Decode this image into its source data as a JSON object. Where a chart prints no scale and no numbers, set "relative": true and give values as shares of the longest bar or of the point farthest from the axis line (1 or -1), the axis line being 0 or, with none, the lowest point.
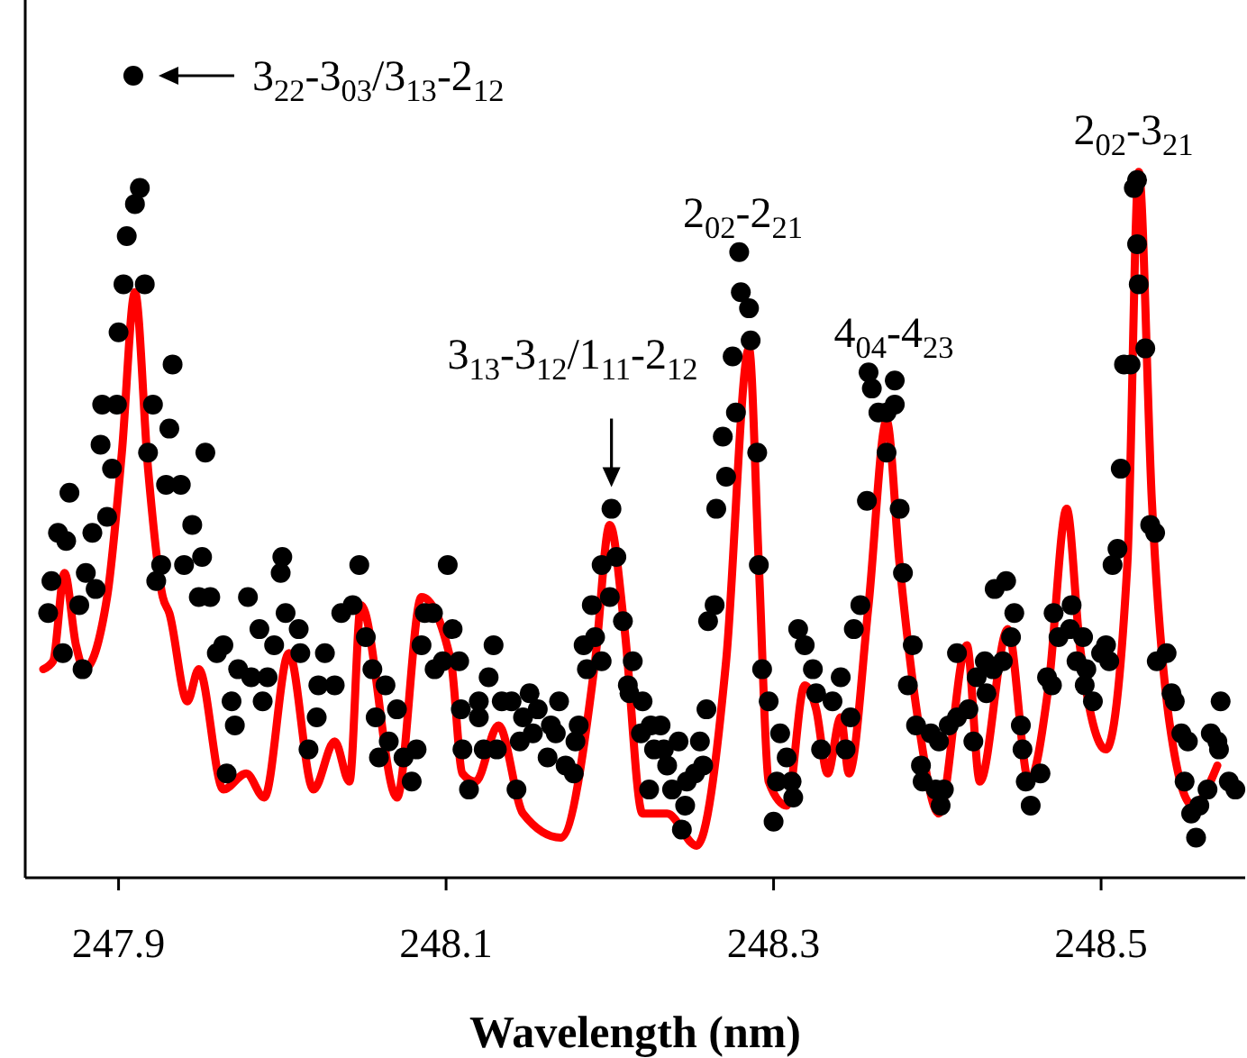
{
  "chart_data": {
    "type": "scatter",
    "xlabel": "Wavelength (nm)",
    "relative": true,
    "xlim": [
      247.843,
      248.588
    ],
    "xticks": [
      247.9,
      248.1,
      248.3,
      248.5
    ],
    "grid": false,
    "annotations": [
      {
        "text": "3$_{22}$-3$_{03}$/3$_{13}$-2$_{12}$",
        "x": 247.909,
        "y": 1.0
      },
      {
        "text": "3$_{13}$-3$_{12}$/1$_{11}$-2$_{12}$",
        "x": 248.201,
        "y": 0.46
      },
      {
        "text": "2$_{02}$-2$_{21}$",
        "x": 248.279,
        "y": 0.78
      },
      {
        "text": "4$_{04}$-4$_{23}$",
        "x": 248.358,
        "y": 0.63
      },
      {
        "text": "2$_{02}$-3$_{21}$",
        "x": 248.522,
        "y": 0.87
      }
    ],
    "series": [
      {
        "type": "line",
        "color": "#ff0000",
        "line_style": "solid",
        "x": [
          247.854,
          247.86,
          247.867,
          247.874,
          247.879,
          247.893,
          247.902,
          247.91,
          247.918,
          247.927,
          247.931,
          247.942,
          247.949,
          247.964,
          247.978,
          247.989,
          248.004,
          248.019,
          248.032,
          248.041,
          248.048,
          248.07,
          248.085,
          248.103,
          248.11,
          248.118,
          248.132,
          248.147,
          248.17,
          248.191,
          248.2,
          248.209,
          248.22,
          248.235,
          248.253,
          248.271,
          248.285,
          248.291,
          248.297,
          248.308,
          248.319,
          248.326,
          248.333,
          248.341,
          248.346,
          248.358,
          248.369,
          248.377,
          248.388,
          248.401,
          248.418,
          248.426,
          248.443,
          248.456,
          248.468,
          248.479,
          248.487,
          248.503,
          248.516,
          248.523,
          248.531,
          248.542,
          248.556,
          248.571
        ],
        "values": [
          0.26,
          0.27,
          0.38,
          0.29,
          0.26,
          0.35,
          0.53,
          0.73,
          0.51,
          0.35,
          0.33,
          0.22,
          0.26,
          0.11,
          0.13,
          0.1,
          0.28,
          0.11,
          0.17,
          0.12,
          0.34,
          0.1,
          0.35,
          0.27,
          0.13,
          0.12,
          0.19,
          0.08,
          0.05,
          0.27,
          0.44,
          0.31,
          0.08,
          0.08,
          0.04,
          0.27,
          0.66,
          0.39,
          0.12,
          0.09,
          0.24,
          0.21,
          0.13,
          0.2,
          0.13,
          0.34,
          0.57,
          0.39,
          0.2,
          0.08,
          0.29,
          0.12,
          0.31,
          0.12,
          0.24,
          0.46,
          0.29,
          0.16,
          0.39,
          0.88,
          0.47,
          0.19,
          0.09,
          0.14
        ]
      },
      {
        "color": "#000000",
        "marker": "circle",
        "x": [
          247.909,
          247.913,
          247.91,
          247.905,
          247.903,
          247.916,
          247.9,
          247.933,
          247.89,
          247.899,
          247.921,
          247.931,
          247.889,
          247.918,
          247.896,
          247.929,
          247.938,
          247.87,
          247.953,
          247.893,
          247.945,
          247.863,
          247.884,
          247.868,
          247.951,
          247.926,
          247.94,
          247.859,
          247.88,
          247.886,
          247.923,
          247.949,
          247.956,
          247.876,
          247.857,
          247.866,
          247.878,
          248.0,
          247.999,
          247.979,
          248.002,
          247.986,
          247.964,
          247.96,
          247.995,
          248.01,
          248.011,
          247.973,
          247.981,
          247.991,
          248.026,
          248.036,
          248.043,
          248.047,
          247.969,
          247.988,
          247.971,
          248.022,
          248.032,
          248.021,
          248.016,
          248.051,
          248.055,
          248.063,
          248.07,
          248.057,
          248.065,
          248.059,
          248.074,
          248.082,
          248.079,
          247.966,
          248.085,
          248.087,
          248.093,
          248.101,
          248.092,
          248.104,
          248.098,
          248.108,
          248.109,
          248.12,
          248.12,
          248.129,
          248.126,
          248.134,
          248.14,
          248.151,
          248.147,
          248.156,
          248.169,
          248.164,
          248.153,
          248.11,
          248.123,
          248.131,
          248.145,
          248.167,
          248.162,
          248.173,
          248.178,
          248.181,
          248.179,
          248.114,
          248.143,
          248.184,
          248.191,
          248.186,
          248.195,
          248.189,
          248.2,
          248.195,
          248.204,
          248.201,
          248.208,
          248.214,
          248.211,
          248.212,
          248.22,
          248.219,
          248.225,
          248.231,
          248.227,
          248.233,
          248.242,
          248.235,
          248.238,
          248.224,
          248.247,
          248.252,
          248.255,
          248.259,
          248.257,
          248.246,
          248.244,
          248.26,
          248.264,
          248.265,
          248.271,
          248.269,
          248.277,
          248.275,
          248.286,
          248.28,
          248.285,
          248.279,
          248.29,
          248.291,
          248.293,
          248.297,
          248.304,
          248.302,
          248.311,
          248.308,
          248.3,
          248.312,
          248.319,
          248.315,
          248.324,
          248.326,
          248.329,
          248.358,
          248.36,
          248.374,
          248.364,
          248.369,
          248.374,
          248.369,
          248.357,
          248.377,
          248.379,
          248.353,
          248.349,
          248.385,
          248.382,
          248.341,
          248.336,
          248.347,
          248.344,
          248.387,
          248.396,
          248.401,
          248.39,
          248.391,
          248.399,
          248.404,
          248.402,
          248.407,
          248.412,
          248.419,
          248.422,
          248.412,
          248.424,
          248.429,
          248.43,
          248.434,
          248.44,
          248.445,
          248.447,
          248.435,
          248.442,
          248.451,
          248.452,
          248.454,
          248.457,
          248.463,
          248.467,
          248.47,
          248.471,
          248.474,
          248.481,
          248.482,
          248.489,
          248.485,
          248.491,
          248.49,
          248.495,
          248.5,
          248.503,
          248.505,
          248.507,
          248.51,
          248.512,
          248.514,
          248.518,
          248.527,
          248.523,
          248.522,
          248.52,
          248.522,
          248.53,
          248.533,
          248.534,
          248.54,
          248.543,
          248.545,
          248.549,
          248.553,
          248.551,
          248.555,
          248.558,
          248.56,
          248.565,
          248.567,
          248.571,
          248.573,
          248.572,
          248.578,
          248.582
        ],
        "values": [
          1.0,
          0.86,
          0.84,
          0.8,
          0.74,
          0.74,
          0.68,
          0.64,
          0.59,
          0.59,
          0.59,
          0.56,
          0.54,
          0.53,
          0.51,
          0.49,
          0.49,
          0.48,
          0.53,
          0.45,
          0.44,
          0.43,
          0.43,
          0.42,
          0.4,
          0.39,
          0.39,
          0.37,
          0.38,
          0.36,
          0.37,
          0.35,
          0.35,
          0.34,
          0.33,
          0.28,
          0.26,
          0.4,
          0.38,
          0.35,
          0.33,
          0.31,
          0.29,
          0.28,
          0.29,
          0.31,
          0.28,
          0.26,
          0.25,
          0.25,
          0.28,
          0.33,
          0.34,
          0.39,
          0.22,
          0.22,
          0.19,
          0.24,
          0.24,
          0.2,
          0.16,
          0.3,
          0.26,
          0.24,
          0.21,
          0.2,
          0.17,
          0.15,
          0.15,
          0.16,
          0.12,
          0.13,
          0.29,
          0.33,
          0.26,
          0.39,
          0.33,
          0.31,
          0.27,
          0.27,
          0.21,
          0.22,
          0.2,
          0.29,
          0.25,
          0.22,
          0.22,
          0.23,
          0.2,
          0.21,
          0.22,
          0.19,
          0.18,
          0.16,
          0.16,
          0.16,
          0.17,
          0.18,
          0.15,
          0.14,
          0.13,
          0.19,
          0.17,
          0.11,
          0.11,
          0.29,
          0.3,
          0.26,
          0.27,
          0.34,
          0.35,
          0.39,
          0.4,
          0.46,
          0.32,
          0.27,
          0.24,
          0.23,
          0.22,
          0.18,
          0.19,
          0.19,
          0.16,
          0.16,
          0.17,
          0.14,
          0.11,
          0.11,
          0.12,
          0.13,
          0.17,
          0.21,
          0.14,
          0.09,
          0.06,
          0.32,
          0.34,
          0.46,
          0.5,
          0.55,
          0.58,
          0.65,
          0.67,
          0.73,
          0.71,
          0.78,
          0.53,
          0.39,
          0.26,
          0.22,
          0.18,
          0.12,
          0.12,
          0.15,
          0.07,
          0.1,
          0.29,
          0.31,
          0.26,
          0.23,
          0.16,
          0.63,
          0.61,
          0.62,
          0.58,
          0.58,
          0.59,
          0.53,
          0.47,
          0.46,
          0.38,
          0.34,
          0.31,
          0.29,
          0.24,
          0.25,
          0.22,
          0.2,
          0.16,
          0.19,
          0.18,
          0.17,
          0.14,
          0.12,
          0.11,
          0.11,
          0.09,
          0.19,
          0.2,
          0.21,
          0.17,
          0.28,
          0.25,
          0.27,
          0.23,
          0.26,
          0.27,
          0.3,
          0.33,
          0.36,
          0.37,
          0.19,
          0.16,
          0.12,
          0.09,
          0.13,
          0.25,
          0.24,
          0.33,
          0.3,
          0.31,
          0.34,
          0.3,
          0.27,
          0.26,
          0.24,
          0.22,
          0.28,
          0.29,
          0.27,
          0.39,
          0.41,
          0.51,
          0.64,
          0.64,
          0.66,
          0.74,
          0.79,
          0.86,
          0.87,
          0.44,
          0.43,
          0.27,
          0.28,
          0.23,
          0.22,
          0.18,
          0.17,
          0.12,
          0.08,
          0.05,
          0.09,
          0.11,
          0.18,
          0.17,
          0.22,
          0.16,
          0.12,
          0.11
        ]
      }
    ]
  }
}
